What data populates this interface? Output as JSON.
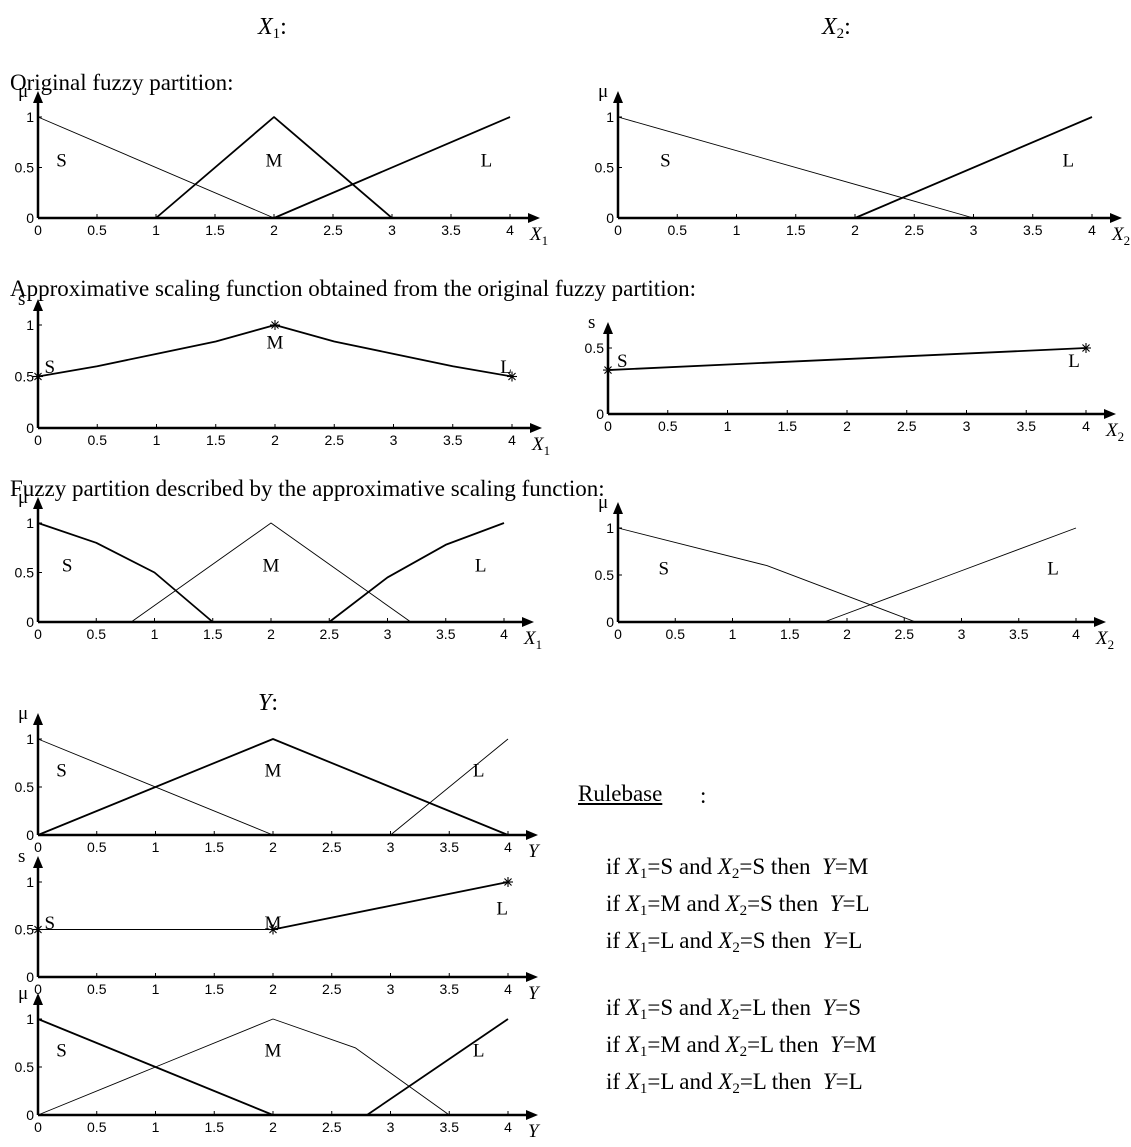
{
  "headers": {
    "x1": {
      "var": "X",
      "sub": "1",
      "suffix": ":"
    },
    "x2": {
      "var": "X",
      "sub": "2",
      "suffix": ":"
    },
    "y": {
      "var": "Y",
      "sub": "",
      "suffix": ":"
    }
  },
  "captions": {
    "original": "Original fuzzy partition:",
    "scaling": "Approximative scaling function obtained from the original fuzzy partition:",
    "described": "Fuzzy partition described by the approximative scaling function:"
  },
  "rulebase": {
    "title": "Rulebase",
    "title_suffix": ":",
    "rules": [
      {
        "a": "S",
        "b": "S",
        "y": "M"
      },
      {
        "a": "M",
        "b": "S",
        "y": "L"
      },
      {
        "a": "L",
        "b": "S",
        "y": "L"
      },
      {
        "a": "S",
        "b": "L",
        "y": "S"
      },
      {
        "a": "M",
        "b": "L",
        "y": "M"
      },
      {
        "a": "L",
        "b": "L",
        "y": "L"
      }
    ],
    "tokens": {
      "if": "if",
      "and": "and",
      "then": "then",
      "eq": "=",
      "x": "X",
      "yv": "Y",
      "s1": "1",
      "s2": "2"
    }
  },
  "chart_data": [
    {
      "id": "x1_orig",
      "type": "line",
      "ylabel": "μ",
      "xlabel": "X",
      "xlabel_sub": "1",
      "xlim": [
        0,
        4
      ],
      "ylim": [
        0,
        1
      ],
      "xticks": [
        0,
        0.5,
        1,
        1.5,
        2,
        2.5,
        3,
        3.5,
        4
      ],
      "yticks": [
        0,
        0.5,
        1
      ],
      "xtick_labels": [
        "0",
        "0.5",
        "1",
        "1.5",
        "2",
        "2.5",
        "3",
        "3.5",
        "4"
      ],
      "ytick_labels": [
        "0",
        "0.5",
        "1"
      ],
      "series": [
        {
          "points": [
            [
              0,
              1
            ],
            [
              2,
              0
            ],
            [
              4,
              0
            ]
          ],
          "width": 1
        },
        {
          "points": [
            [
              0,
              0
            ],
            [
              1,
              0
            ],
            [
              2,
              1
            ],
            [
              3,
              0
            ],
            [
              4,
              0
            ]
          ],
          "width": 2
        },
        {
          "points": [
            [
              0,
              0
            ],
            [
              2,
              0
            ],
            [
              4,
              1
            ]
          ],
          "width": 2
        }
      ],
      "labels": [
        {
          "text": "S",
          "x": 0.2,
          "y": 0.58
        },
        {
          "text": "M",
          "x": 2,
          "y": 0.58
        },
        {
          "text": "L",
          "x": 3.8,
          "y": 0.58
        }
      ]
    },
    {
      "id": "x2_orig",
      "type": "line",
      "ylabel": "μ",
      "xlabel": "X",
      "xlabel_sub": "2",
      "xlim": [
        0,
        4
      ],
      "ylim": [
        0,
        1
      ],
      "xticks": [
        0,
        0.5,
        1,
        1.5,
        2,
        2.5,
        3,
        3.5,
        4
      ],
      "yticks": [
        0,
        0.5,
        1
      ],
      "xtick_labels": [
        "0",
        "0.5",
        "1",
        "1.5",
        "2",
        "2.5",
        "3",
        "3.5",
        "4"
      ],
      "ytick_labels": [
        "0",
        "0.5",
        "1"
      ],
      "series": [
        {
          "points": [
            [
              0,
              1
            ],
            [
              3,
              0
            ],
            [
              4,
              0
            ]
          ],
          "width": 1
        },
        {
          "points": [
            [
              0,
              0
            ],
            [
              2,
              0
            ],
            [
              4,
              1
            ]
          ],
          "width": 2
        }
      ],
      "labels": [
        {
          "text": "S",
          "x": 0.4,
          "y": 0.58
        },
        {
          "text": "L",
          "x": 3.8,
          "y": 0.58
        }
      ]
    },
    {
      "id": "x1_scale",
      "type": "line",
      "ylabel": "s",
      "xlabel": "X",
      "xlabel_sub": "1",
      "xlim": [
        0,
        4
      ],
      "ylim": [
        0,
        1
      ],
      "xticks": [
        0,
        0.5,
        1,
        1.5,
        2,
        2.5,
        3,
        3.5,
        4
      ],
      "yticks": [
        0,
        0.5,
        1
      ],
      "xtick_labels": [
        "0",
        "0.5",
        "1",
        "1.5",
        "2",
        "2.5",
        "3",
        "3.5",
        "4"
      ],
      "ytick_labels": [
        "0",
        "0.5",
        "1"
      ],
      "series": [
        {
          "points": [
            [
              0,
              0.5
            ],
            [
              0.5,
              0.6
            ],
            [
              1,
              0.72
            ],
            [
              1.5,
              0.84
            ],
            [
              2,
              1
            ],
            [
              2.5,
              0.84
            ],
            [
              3,
              0.72
            ],
            [
              3.5,
              0.6
            ],
            [
              4,
              0.5
            ]
          ],
          "width": 2
        }
      ],
      "markers": [
        [
          0,
          0.5
        ],
        [
          2,
          1
        ],
        [
          4,
          0.5
        ]
      ],
      "labels": [
        {
          "text": "S",
          "x": 0.1,
          "y": 0.6
        },
        {
          "text": "M",
          "x": 2,
          "y": 0.84
        },
        {
          "text": "L",
          "x": 3.95,
          "y": 0.6
        }
      ]
    },
    {
      "id": "x2_scale",
      "type": "line",
      "ylabel": "s",
      "xlabel": "X",
      "xlabel_sub": "2",
      "xlim": [
        0,
        4
      ],
      "ylim": [
        0,
        0.5
      ],
      "xticks": [
        0,
        0.5,
        1,
        1.5,
        2,
        2.5,
        3,
        3.5,
        4
      ],
      "yticks": [
        0,
        0.5
      ],
      "xtick_labels": [
        "0",
        "0.5",
        "1",
        "1.5",
        "2",
        "2.5",
        "3",
        "3.5",
        "4"
      ],
      "ytick_labels": [
        "0",
        "0.5"
      ],
      "series": [
        {
          "points": [
            [
              0,
              0.333
            ],
            [
              4,
              0.5
            ]
          ],
          "width": 2
        }
      ],
      "markers": [
        [
          0,
          0.333
        ],
        [
          4,
          0.5
        ]
      ],
      "labels": [
        {
          "text": "S",
          "x": 0.12,
          "y": 0.41
        },
        {
          "text": "L",
          "x": 3.9,
          "y": 0.41
        }
      ]
    },
    {
      "id": "x1_desc",
      "type": "line",
      "ylabel": "μ",
      "xlabel": "X",
      "xlabel_sub": "1",
      "xlim": [
        0,
        4
      ],
      "ylim": [
        0,
        1
      ],
      "xticks": [
        0,
        0.5,
        1,
        1.5,
        2,
        2.5,
        3,
        3.5,
        4
      ],
      "yticks": [
        0,
        0.5,
        1
      ],
      "xtick_labels": [
        "0",
        "0.5",
        "1",
        "1.5",
        "2",
        "2.5",
        "3",
        "3.5",
        "4"
      ],
      "ytick_labels": [
        "0",
        "0.5",
        "1"
      ],
      "series": [
        {
          "points": [
            [
              0,
              1
            ],
            [
              0.5,
              0.8
            ],
            [
              1,
              0.5
            ],
            [
              1.5,
              0
            ]
          ],
          "width": 2
        },
        {
          "points": [
            [
              0.8,
              0
            ],
            [
              1.4,
              0.5
            ],
            [
              2,
              1
            ],
            [
              2.6,
              0.5
            ],
            [
              3.2,
              0
            ]
          ],
          "width": 1
        },
        {
          "points": [
            [
              2.5,
              0
            ],
            [
              3,
              0.45
            ],
            [
              3.5,
              0.78
            ],
            [
              4,
              1
            ]
          ],
          "width": 2
        }
      ],
      "labels": [
        {
          "text": "S",
          "x": 0.25,
          "y": 0.58
        },
        {
          "text": "M",
          "x": 2,
          "y": 0.58
        },
        {
          "text": "L",
          "x": 3.8,
          "y": 0.58
        }
      ]
    },
    {
      "id": "x2_desc",
      "type": "line",
      "ylabel": "μ",
      "xlabel": "X",
      "xlabel_sub": "2",
      "xlim": [
        0,
        4
      ],
      "ylim": [
        0,
        1
      ],
      "xticks": [
        0,
        0.5,
        1,
        1.5,
        2,
        2.5,
        3,
        3.5,
        4
      ],
      "yticks": [
        0,
        0.5,
        1
      ],
      "xtick_labels": [
        "0",
        "0.5",
        "1",
        "1.5",
        "2",
        "2.5",
        "3",
        "3.5",
        "4"
      ],
      "ytick_labels": [
        "0",
        "0.5",
        "1"
      ],
      "series": [
        {
          "points": [
            [
              0,
              1
            ],
            [
              1.3,
              0.6
            ],
            [
              2.6,
              0
            ]
          ],
          "width": 1
        },
        {
          "points": [
            [
              1.8,
              0
            ],
            [
              2.9,
              0.5
            ],
            [
              4,
              1
            ]
          ],
          "width": 1
        }
      ],
      "labels": [
        {
          "text": "S",
          "x": 0.4,
          "y": 0.58
        },
        {
          "text": "L",
          "x": 3.8,
          "y": 0.58
        }
      ]
    },
    {
      "id": "y_orig",
      "type": "line",
      "ylabel": "μ",
      "xlabel": "Y",
      "xlabel_sub": "",
      "xlim": [
        0,
        4
      ],
      "ylim": [
        0,
        1
      ],
      "xticks": [
        0,
        0.5,
        1,
        1.5,
        2,
        2.5,
        3,
        3.5,
        4
      ],
      "yticks": [
        0,
        0.5,
        1
      ],
      "xtick_labels": [
        "0",
        "0.5",
        "1",
        "1.5",
        "2",
        "2.5",
        "3",
        "3.5",
        "4"
      ],
      "ytick_labels": [
        "0",
        "0.5",
        "1"
      ],
      "series": [
        {
          "points": [
            [
              0,
              1
            ],
            [
              2,
              0
            ],
            [
              4,
              0
            ]
          ],
          "width": 1
        },
        {
          "points": [
            [
              0,
              0
            ],
            [
              2,
              1
            ],
            [
              4,
              0
            ]
          ],
          "width": 2
        },
        {
          "points": [
            [
              0,
              0
            ],
            [
              3,
              0
            ],
            [
              4,
              1
            ]
          ],
          "width": 1
        }
      ],
      "labels": [
        {
          "text": "S",
          "x": 0.2,
          "y": 0.68
        },
        {
          "text": "M",
          "x": 2,
          "y": 0.68
        },
        {
          "text": "L",
          "x": 3.75,
          "y": 0.68
        }
      ]
    },
    {
      "id": "y_scale",
      "type": "line",
      "ylabel": "s",
      "xlabel": "Y",
      "xlabel_sub": "",
      "xlim": [
        0,
        4
      ],
      "ylim": [
        0,
        1
      ],
      "xticks": [
        0,
        0.5,
        1,
        1.5,
        2,
        2.5,
        3,
        3.5,
        4
      ],
      "yticks": [
        0,
        0.5,
        1
      ],
      "xtick_labels": [
        "0",
        "0.5",
        "1",
        "1.5",
        "2",
        "2.5",
        "3",
        "3.5",
        "4"
      ],
      "ytick_labels": [
        "0",
        "0.5",
        "1"
      ],
      "series": [
        {
          "points": [
            [
              0,
              0.5
            ],
            [
              2,
              0.5
            ]
          ],
          "width": 1
        },
        {
          "points": [
            [
              2,
              0.5
            ],
            [
              3,
              0.75
            ],
            [
              4,
              1
            ]
          ],
          "width": 2
        }
      ],
      "markers": [
        [
          0,
          0.5
        ],
        [
          2,
          0.5
        ],
        [
          4,
          1
        ]
      ],
      "labels": [
        {
          "text": "S",
          "x": 0.1,
          "y": 0.58
        },
        {
          "text": "M",
          "x": 2,
          "y": 0.58
        },
        {
          "text": "L",
          "x": 3.95,
          "y": 0.73
        }
      ]
    },
    {
      "id": "y_desc",
      "type": "line",
      "ylabel": "μ",
      "xlabel": "Y",
      "xlabel_sub": "",
      "xlim": [
        0,
        4
      ],
      "ylim": [
        0,
        1
      ],
      "xticks": [
        0,
        0.5,
        1,
        1.5,
        2,
        2.5,
        3,
        3.5,
        4
      ],
      "yticks": [
        0,
        0.5,
        1
      ],
      "xtick_labels": [
        "0",
        "0.5",
        "1",
        "1.5",
        "2",
        "2.5",
        "3",
        "3.5",
        "4"
      ],
      "ytick_labels": [
        "0",
        "0.5",
        "1"
      ],
      "series": [
        {
          "points": [
            [
              0,
              1
            ],
            [
              1,
              0.5
            ],
            [
              2,
              0
            ]
          ],
          "width": 2
        },
        {
          "points": [
            [
              0,
              0
            ],
            [
              1,
              0.5
            ],
            [
              2,
              1
            ],
            [
              2.7,
              0.7
            ],
            [
              3.5,
              0
            ]
          ],
          "width": 1
        },
        {
          "points": [
            [
              2.8,
              0
            ],
            [
              3.4,
              0.5
            ],
            [
              4,
              1
            ]
          ],
          "width": 2
        }
      ],
      "labels": [
        {
          "text": "S",
          "x": 0.2,
          "y": 0.68
        },
        {
          "text": "M",
          "x": 2,
          "y": 0.68
        },
        {
          "text": "L",
          "x": 3.75,
          "y": 0.68
        }
      ]
    }
  ]
}
